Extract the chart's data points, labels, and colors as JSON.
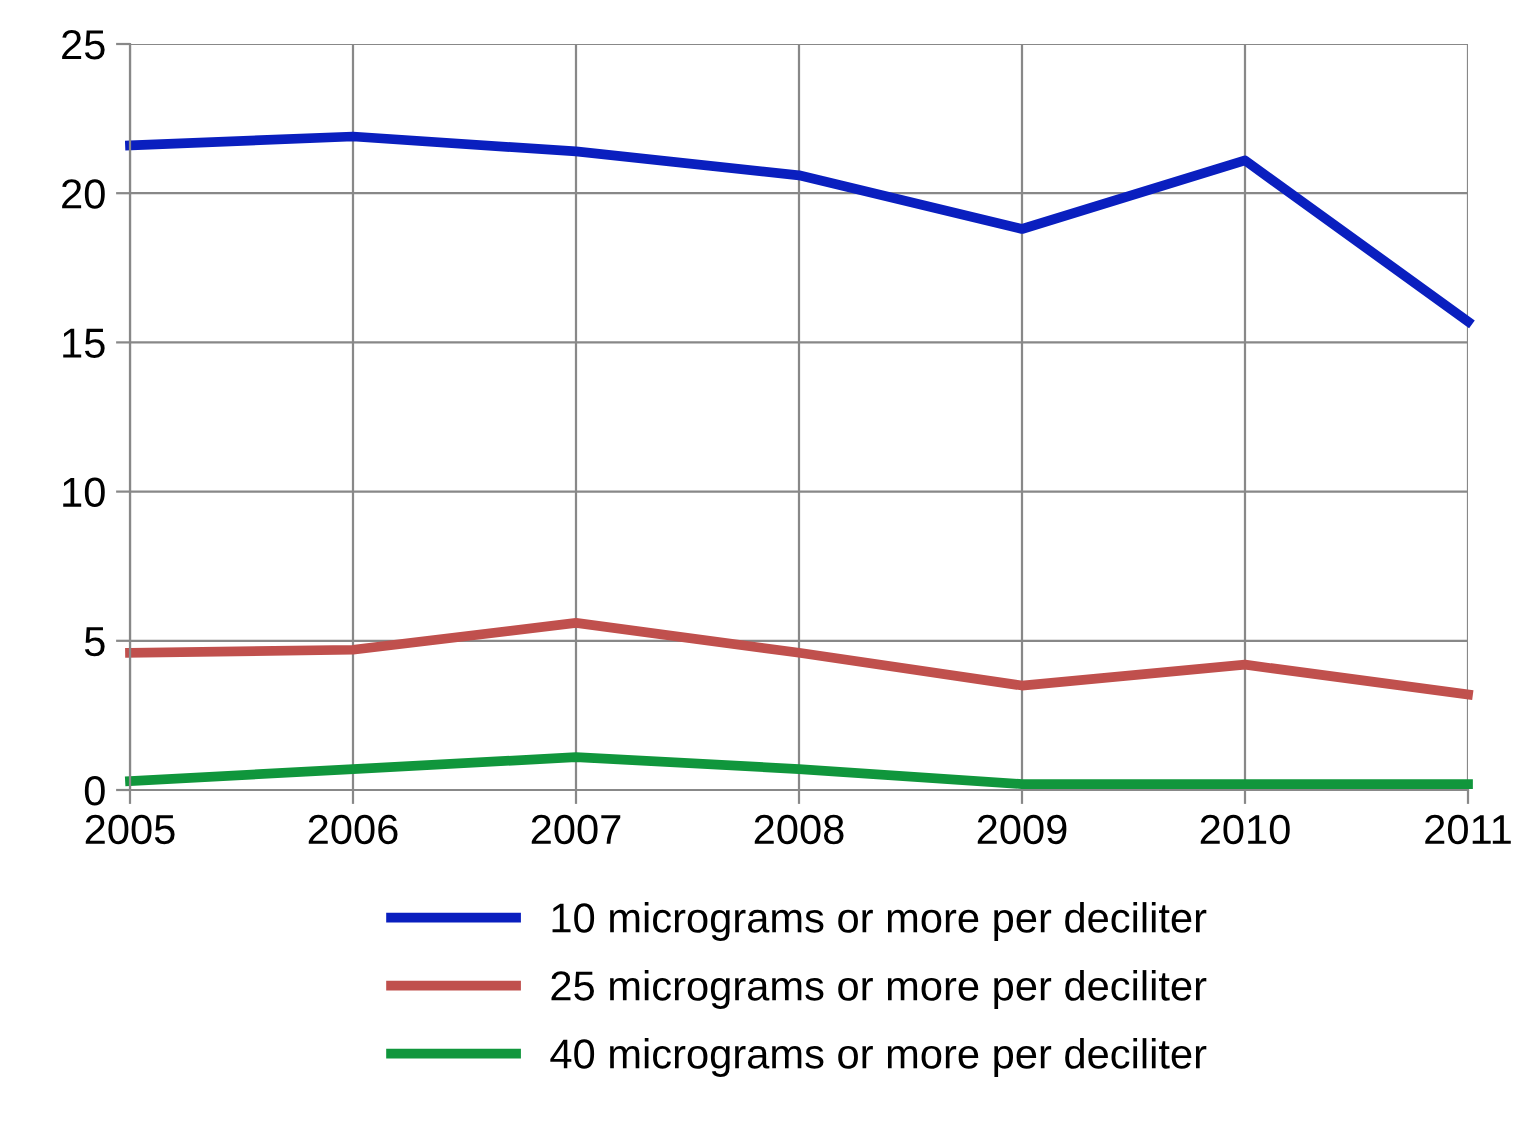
{
  "chart_data": {
    "type": "line",
    "x": [
      2005,
      2006,
      2007,
      2008,
      2009,
      2010,
      2011
    ],
    "xlim": [
      2005,
      2011
    ],
    "xticks": [
      2005,
      2006,
      2007,
      2008,
      2009,
      2010,
      2011
    ],
    "ylim": [
      0,
      25
    ],
    "yticks": [
      0,
      5,
      10,
      15,
      20,
      25
    ],
    "grid": true,
    "legend": "bottom",
    "marker": "none",
    "line_style": "solid",
    "series": [
      {
        "name": "10 micrograms or more per deciliter",
        "color": "#0a1fbf",
        "values": [
          21.6,
          21.9,
          21.4,
          20.6,
          18.8,
          21.1,
          15.7
        ]
      },
      {
        "name": "25 micrograms or more per deciliter",
        "color": "#c0504d",
        "values": [
          4.6,
          4.7,
          5.6,
          4.6,
          3.5,
          4.2,
          3.2
        ]
      },
      {
        "name": "40 micrograms or more per deciliter",
        "color": "#10963c",
        "values": [
          0.3,
          0.7,
          1.1,
          0.7,
          0.2,
          0.2,
          0.2
        ]
      }
    ]
  }
}
